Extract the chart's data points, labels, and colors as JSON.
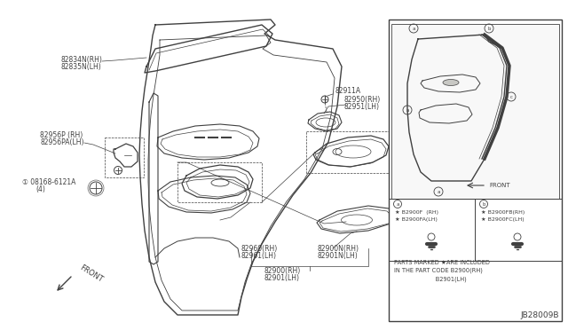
{
  "bg_color": "#ffffff",
  "line_color": "#404040",
  "diagram_id": "JB28009B",
  "inset_note_line1": "PARTS MARKED ★ARE INCLUDED",
  "inset_note_line2": "IN THE PART CODE B2900(RH)",
  "inset_note_line3": "                      B2901(LH)"
}
